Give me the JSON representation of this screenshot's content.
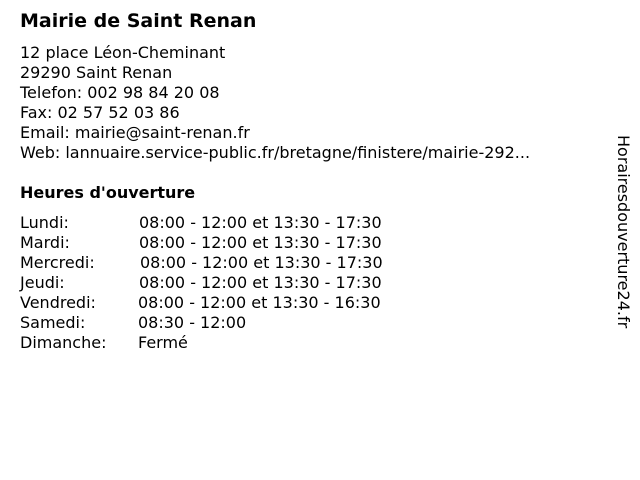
{
  "title": "Mairie de Saint Renan",
  "info": {
    "address": "12 place Léon-Cheminant",
    "city": "29290 Saint Renan",
    "phone": "Telefon: 002 98 84 20 08",
    "fax": "Fax: 02 57 52 03 86",
    "email": "Email: mairie@saint-renan.fr",
    "web": "Web: lannuaire.service-public.fr/bretagne/finistere/mairie-292..."
  },
  "hours_heading": "Heures d'ouverture",
  "hours": [
    {
      "day": "Lundi:",
      "time": "08:00 - 12:00 et 13:30 - 17:30"
    },
    {
      "day": "Mardi:",
      "time": "08:00 - 12:00 et 13:30 - 17:30"
    },
    {
      "day": "Mercredi:",
      "time": "08:00 - 12:00 et 13:30 - 17:30"
    },
    {
      "day": "Jeudi:",
      "time": "08:00 - 12:00 et 13:30 - 17:30"
    },
    {
      "day": "Vendredi:",
      "time": "08:00 - 12:00 et 13:30 - 16:30"
    },
    {
      "day": "Samedi:",
      "time": "08:30 - 12:00"
    },
    {
      "day": "Dimanche:",
      "time": "Fermé"
    }
  ],
  "watermark": "Horairesdouverture24.fr"
}
